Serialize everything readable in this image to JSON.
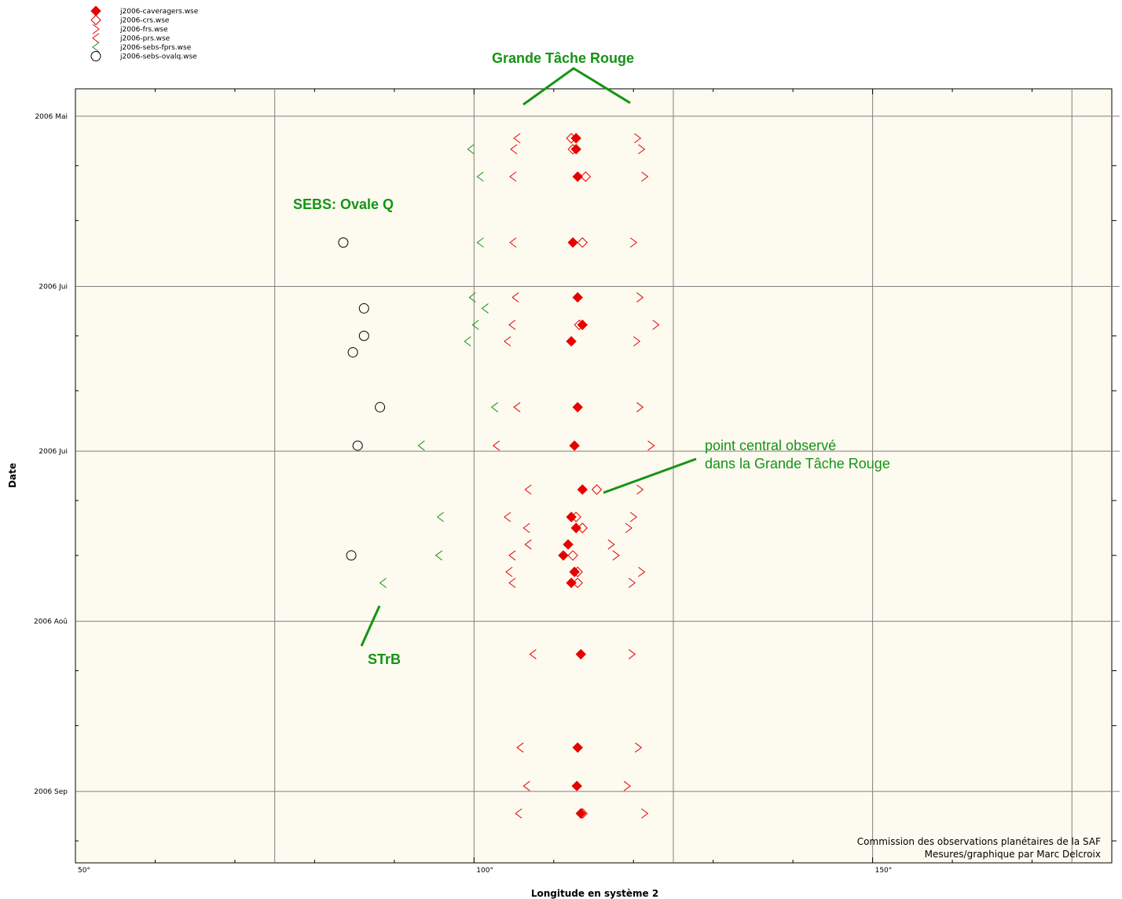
{
  "colors": {
    "plot_bg": "#fdfaf0",
    "grid": "#808080",
    "red": "#e60000",
    "green": "#149414",
    "black": "#000000"
  },
  "chart_data": {
    "type": "scatter",
    "xlabel": "Longitude en système 2",
    "ylabel": "Date",
    "xlim": [
      50,
      180
    ],
    "ylim": [
      "2006-04-26",
      "2006-09-14"
    ],
    "x_ticks": [
      {
        "value": 50,
        "label": "50°"
      },
      {
        "value": 100,
        "label": "100°"
      },
      {
        "value": 150,
        "label": "150°"
      }
    ],
    "y_ticks": [
      {
        "value": "2006-05-01",
        "label": "2006 Mai"
      },
      {
        "value": "2006-06-01",
        "label": "2006 Jui"
      },
      {
        "value": "2006-07-01",
        "label": "2006 Jui"
      },
      {
        "value": "2006-08-01",
        "label": "2006 Aoû"
      },
      {
        "value": "2006-09-01",
        "label": "2006 Sep"
      }
    ],
    "grid": true,
    "legend_position": "top-left",
    "series": [
      {
        "name": "j2006-caveragers.wse",
        "marker": "diamond-filled",
        "color": "#e60000",
        "points": [
          [
            112.8,
            "2006-05-05"
          ],
          [
            112.8,
            "2006-05-07"
          ],
          [
            113.0,
            "2006-05-12"
          ],
          [
            112.4,
            "2006-05-24"
          ],
          [
            113.0,
            "2006-06-03"
          ],
          [
            113.6,
            "2006-06-08"
          ],
          [
            112.2,
            "2006-06-11"
          ],
          [
            113.0,
            "2006-06-23"
          ],
          [
            112.6,
            "2006-06-30"
          ],
          [
            113.6,
            "2006-07-08"
          ],
          [
            112.2,
            "2006-07-13"
          ],
          [
            112.8,
            "2006-07-15"
          ],
          [
            111.8,
            "2006-07-18"
          ],
          [
            111.2,
            "2006-07-20"
          ],
          [
            112.6,
            "2006-07-23"
          ],
          [
            112.2,
            "2006-07-25"
          ],
          [
            113.4,
            "2006-08-07"
          ],
          [
            113.0,
            "2006-08-24"
          ],
          [
            112.9,
            "2006-08-31"
          ],
          [
            113.4,
            "2006-09-05"
          ]
        ]
      },
      {
        "name": "j2006-crs.wse",
        "marker": "diamond-open",
        "color": "#e60000",
        "points": [
          [
            112.2,
            "2006-05-05"
          ],
          [
            112.4,
            "2006-05-07"
          ],
          [
            114.0,
            "2006-05-12"
          ],
          [
            113.6,
            "2006-05-24"
          ],
          [
            113.2,
            "2006-06-08"
          ],
          [
            115.4,
            "2006-07-08"
          ],
          [
            112.8,
            "2006-07-13"
          ],
          [
            113.6,
            "2006-07-15"
          ],
          [
            112.4,
            "2006-07-20"
          ],
          [
            113.0,
            "2006-07-23"
          ],
          [
            113.0,
            "2006-07-25"
          ],
          [
            113.6,
            "2006-09-05"
          ]
        ]
      },
      {
        "name": "j2006-frs.wse",
        "marker": "chevron-right",
        "color": "#e60000",
        "points": [
          [
            120.5,
            "2006-05-05"
          ],
          [
            121.0,
            "2006-05-07"
          ],
          [
            121.4,
            "2006-05-12"
          ],
          [
            120.0,
            "2006-05-24"
          ],
          [
            120.8,
            "2006-06-03"
          ],
          [
            122.8,
            "2006-06-08"
          ],
          [
            120.4,
            "2006-06-11"
          ],
          [
            120.8,
            "2006-06-23"
          ],
          [
            122.2,
            "2006-06-30"
          ],
          [
            120.8,
            "2006-07-08"
          ],
          [
            120.0,
            "2006-07-13"
          ],
          [
            119.4,
            "2006-07-15"
          ],
          [
            117.2,
            "2006-07-18"
          ],
          [
            117.8,
            "2006-07-20"
          ],
          [
            121.0,
            "2006-07-23"
          ],
          [
            119.8,
            "2006-07-25"
          ],
          [
            119.8,
            "2006-08-07"
          ],
          [
            120.6,
            "2006-08-24"
          ],
          [
            119.2,
            "2006-08-31"
          ],
          [
            121.4,
            "2006-09-05"
          ]
        ]
      },
      {
        "name": "j2006-prs.wse",
        "marker": "chevron-left",
        "color": "#e60000",
        "points": [
          [
            105.4,
            "2006-05-05"
          ],
          [
            105.0,
            "2006-05-07"
          ],
          [
            104.9,
            "2006-05-12"
          ],
          [
            104.9,
            "2006-05-24"
          ],
          [
            105.2,
            "2006-06-03"
          ],
          [
            104.8,
            "2006-06-08"
          ],
          [
            104.2,
            "2006-06-11"
          ],
          [
            105.4,
            "2006-06-23"
          ],
          [
            102.8,
            "2006-06-30"
          ],
          [
            106.8,
            "2006-07-08"
          ],
          [
            104.2,
            "2006-07-13"
          ],
          [
            106.6,
            "2006-07-15"
          ],
          [
            106.8,
            "2006-07-18"
          ],
          [
            104.8,
            "2006-07-20"
          ],
          [
            104.4,
            "2006-07-23"
          ],
          [
            104.8,
            "2006-07-25"
          ],
          [
            107.4,
            "2006-08-07"
          ],
          [
            105.8,
            "2006-08-24"
          ],
          [
            106.6,
            "2006-08-31"
          ],
          [
            105.6,
            "2006-09-05"
          ]
        ]
      },
      {
        "name": "j2006-sebs-fprs.wse",
        "marker": "chevron-left",
        "color": "#149414",
        "points": [
          [
            99.6,
            "2006-05-07"
          ],
          [
            100.8,
            "2006-05-12"
          ],
          [
            100.8,
            "2006-05-24"
          ],
          [
            99.8,
            "2006-06-03"
          ],
          [
            101.4,
            "2006-06-05"
          ],
          [
            100.2,
            "2006-06-08"
          ],
          [
            99.2,
            "2006-06-11"
          ],
          [
            102.6,
            "2006-06-23"
          ],
          [
            93.4,
            "2006-06-30"
          ],
          [
            95.8,
            "2006-07-13"
          ],
          [
            95.6,
            "2006-07-20"
          ],
          [
            88.6,
            "2006-07-25"
          ]
        ]
      },
      {
        "name": "j2006-sebs-ovalq.wse",
        "marker": "circle-open",
        "color": "#000000",
        "points": [
          [
            83.6,
            "2006-05-24"
          ],
          [
            86.2,
            "2006-06-05"
          ],
          [
            86.2,
            "2006-06-10"
          ],
          [
            84.8,
            "2006-06-13"
          ],
          [
            88.2,
            "2006-06-23"
          ],
          [
            85.4,
            "2006-06-30"
          ],
          [
            84.6,
            "2006-07-20"
          ]
        ]
      }
    ],
    "annotations": [
      {
        "text": "Grande Tâche Rouge",
        "style": "bold"
      },
      {
        "text": "SEBS: Ovale Q",
        "style": "bold"
      },
      {
        "text": "point central observé",
        "style": "plain"
      },
      {
        "text": "dans la Grande Tâche Rouge",
        "style": "plain"
      },
      {
        "text": "STrB",
        "style": "bold"
      }
    ],
    "credits": [
      "Commission des observations planétaires de la SAF",
      "Mesures/graphique par Marc Delcroix"
    ]
  }
}
